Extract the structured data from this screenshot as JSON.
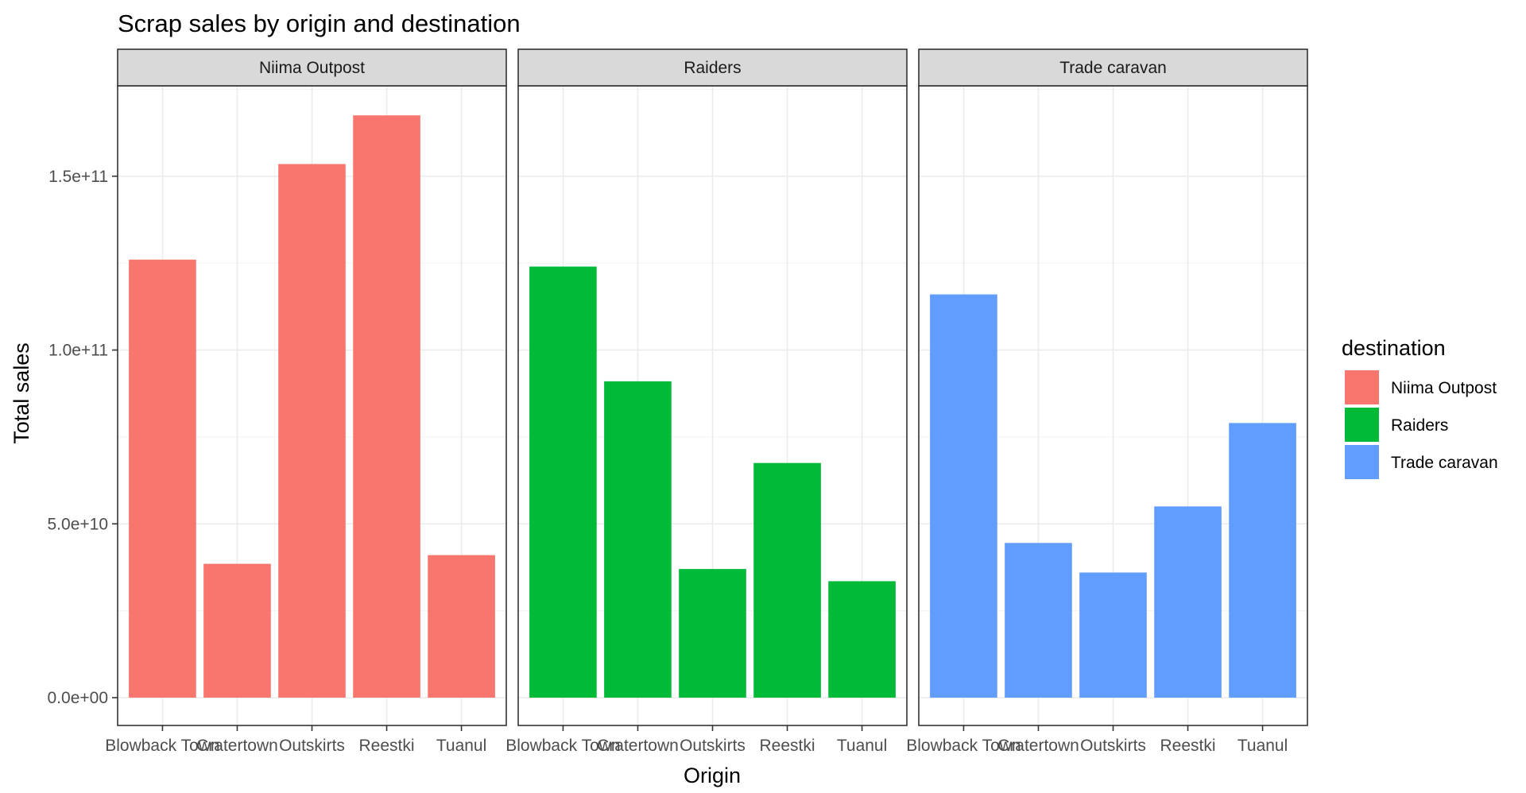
{
  "chart_data": {
    "type": "bar",
    "title": "Scrap sales by origin and destination",
    "xlabel": "Origin",
    "ylabel": "Total sales",
    "categories": [
      "Blowback Town",
      "Cratertown",
      "Outskirts",
      "Reestki",
      "Tuanul"
    ],
    "ylim": [
      -8000000000,
      176000000000
    ],
    "y_ticks": [
      0,
      50000000000,
      100000000000,
      150000000000
    ],
    "y_tick_labels": [
      "0.0e+00",
      "5.0e+10",
      "1.0e+11",
      "1.5e+11"
    ],
    "grid": true,
    "legend_position": "right",
    "legend_title": "destination",
    "facet_by": "destination",
    "series": [
      {
        "name": "Niima Outpost",
        "color": "#F8766D",
        "values": [
          126000000000,
          38500000000,
          153500000000,
          167500000000,
          41000000000
        ]
      },
      {
        "name": "Raiders",
        "color": "#00BA38",
        "values": [
          124000000000,
          91000000000,
          37000000000,
          67500000000,
          33500000000
        ]
      },
      {
        "name": "Trade caravan",
        "color": "#619CFF",
        "values": [
          116000000000,
          44500000000,
          36000000000,
          55000000000,
          79000000000
        ]
      }
    ]
  }
}
